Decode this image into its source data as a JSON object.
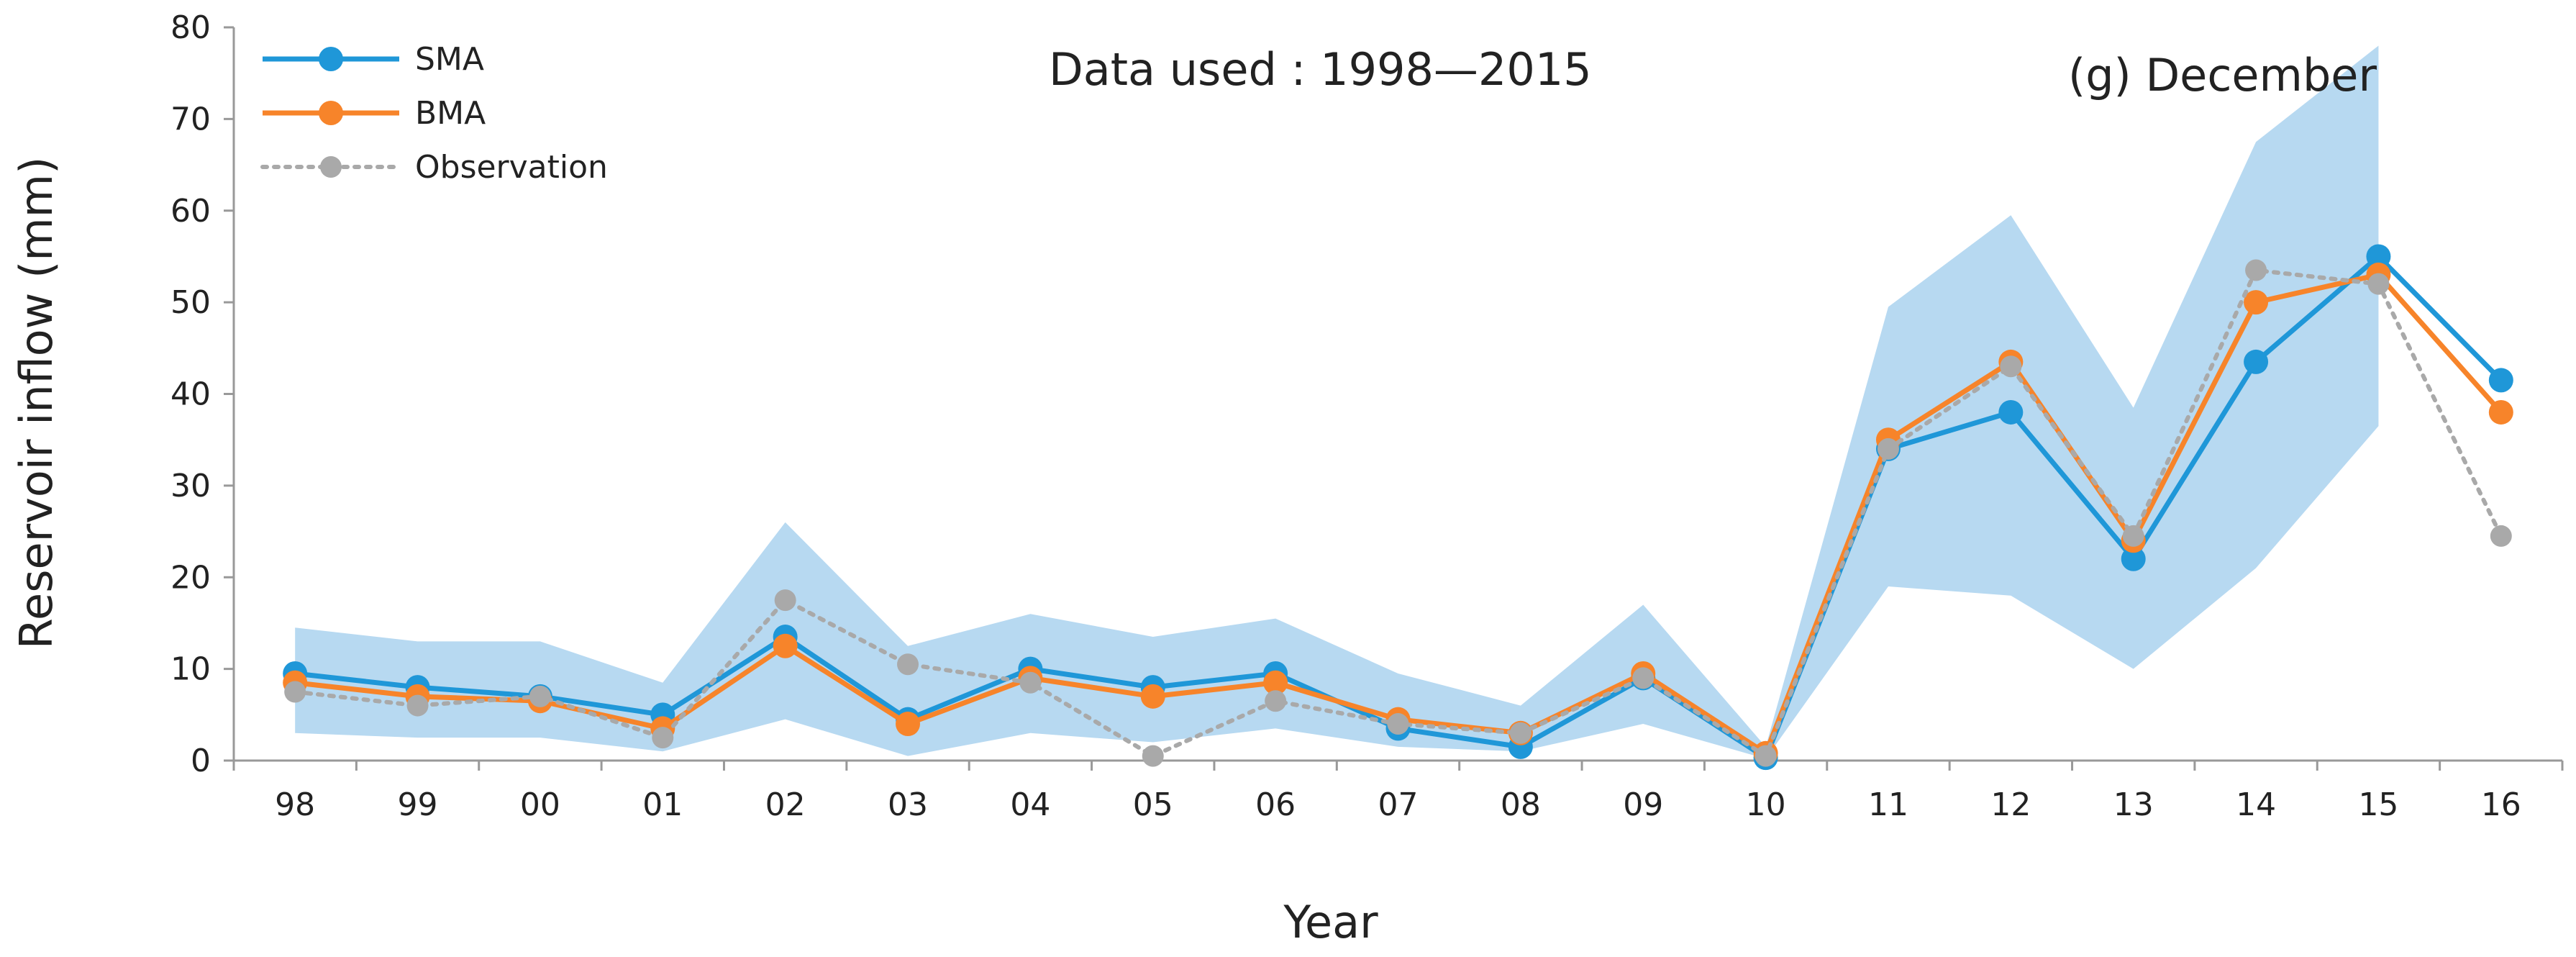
{
  "chart_data": {
    "type": "line",
    "title": "",
    "xlabel": "Year",
    "ylabel": "Reservoir inflow (mm)",
    "ylim": [
      0,
      80
    ],
    "yticks": [
      0,
      10,
      20,
      30,
      40,
      50,
      60,
      70,
      80
    ],
    "categories": [
      "98",
      "99",
      "00",
      "01",
      "02",
      "03",
      "04",
      "05",
      "06",
      "07",
      "08",
      "09",
      "10",
      "11",
      "12",
      "13",
      "14",
      "15",
      "16"
    ],
    "band": {
      "color": "#b7d9f1",
      "lower": [
        3.0,
        2.5,
        2.5,
        1.0,
        4.5,
        0.5,
        3.0,
        2.0,
        3.5,
        1.5,
        1.0,
        4.0,
        0.2,
        19.0,
        18.0,
        10.0,
        21.0,
        36.5,
        null
      ],
      "upper": [
        14.5,
        13.0,
        13.0,
        8.5,
        26.0,
        12.5,
        16.0,
        13.5,
        15.5,
        9.5,
        6.0,
        17.0,
        1.5,
        49.5,
        59.5,
        38.5,
        67.5,
        78.0,
        null
      ]
    },
    "series": [
      {
        "name": "SMA",
        "color": "#1f97d8",
        "style": "solid",
        "values": [
          9.5,
          8.0,
          7.0,
          5.0,
          13.5,
          4.5,
          10.0,
          8.0,
          9.5,
          3.5,
          1.5,
          9.0,
          0.3,
          34.0,
          38.0,
          22.0,
          43.5,
          55.0,
          41.5
        ]
      },
      {
        "name": "BMA",
        "color": "#f7842a",
        "style": "solid",
        "values": [
          8.5,
          7.0,
          6.5,
          3.5,
          12.5,
          4.0,
          9.0,
          7.0,
          8.5,
          4.5,
          3.0,
          9.5,
          0.8,
          35.0,
          43.5,
          24.0,
          50.0,
          53.0,
          38.0
        ]
      },
      {
        "name": "Observation",
        "color": "#a9a9a9",
        "style": "dotted",
        "values": [
          7.5,
          6.0,
          7.0,
          2.5,
          17.5,
          10.5,
          8.5,
          0.5,
          6.5,
          4.0,
          3.0,
          9.0,
          0.5,
          34.0,
          43.0,
          24.5,
          53.5,
          52.0,
          24.5
        ]
      }
    ],
    "annotations": [
      "Data used : 1998—2015",
      "(g) December"
    ],
    "legend_position": "top-left",
    "grid": false
  }
}
